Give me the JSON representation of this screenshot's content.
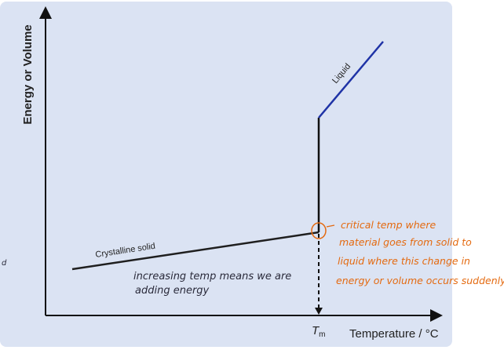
{
  "colors": {
    "panel": "#dbe3f3",
    "axis": "#111111",
    "solid_line": "#1f1f1f",
    "liquid_line": "#1f33a6",
    "annotation_orange": "#e46a10",
    "annotation_dark": "#2a2a3a"
  },
  "axes": {
    "ylabel": "Energy or Volume",
    "xlabel": "Temperature / °C",
    "tm_symbol": "T",
    "tm_subscript": "m"
  },
  "lines": {
    "solid_label": "Crystalline solid",
    "liquid_label": "Liquid"
  },
  "annotations": {
    "critical_lines": [
      "critical temp where",
      "material goes from solid to",
      "liquid where this change in",
      "energy or volume occurs suddenly"
    ],
    "energy_lines": [
      "increasing temp means we are",
      "adding energy"
    ],
    "margin_mark": "d"
  }
}
